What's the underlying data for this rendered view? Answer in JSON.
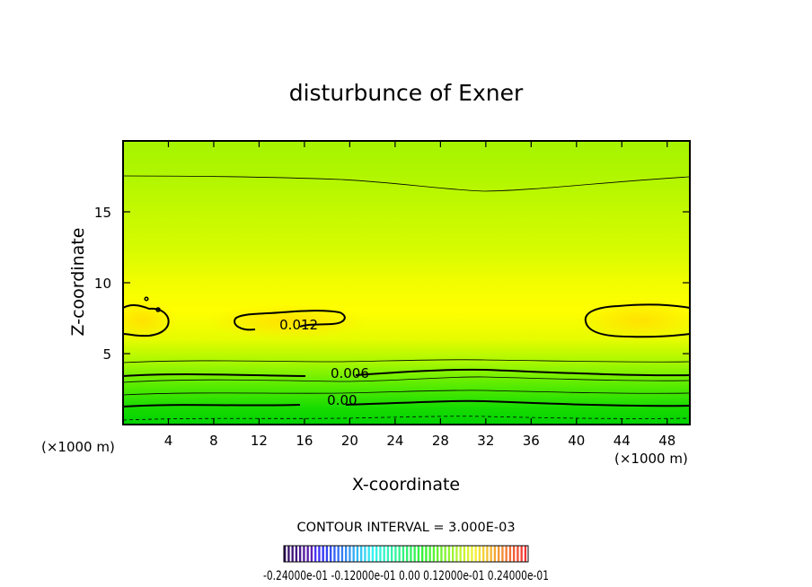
{
  "chart_data": {
    "type": "heatmap",
    "title": "disturbunce of Exner",
    "xlabel": "X-coordinate",
    "ylabel": "Z-coordinate",
    "x_unit": "(×1000 m)",
    "y_unit": "(×1000 m)",
    "xlim": [
      0,
      50
    ],
    "ylim": [
      0,
      20
    ],
    "x_ticks": [
      4,
      8,
      12,
      16,
      20,
      24,
      28,
      32,
      36,
      40,
      44,
      48
    ],
    "y_ticks": [
      5,
      10,
      15
    ],
    "contour_interval_text": "CONTOUR INTERVAL = 3.000E-03",
    "contour_labels": [
      {
        "text": "0.012",
        "x": 13.8,
        "z": 6.7
      },
      {
        "text": "0.006",
        "x": 18.3,
        "z": 3.3
      },
      {
        "text": "0.00",
        "x": 18.0,
        "z": 1.4
      }
    ],
    "colorbar_labels_text": "-0.24000e-01   -0.12000e-01   0.00   0.12000e-01   0.24000e-01",
    "colorbar_range": [
      -0.024,
      0.024
    ],
    "grid": false
  }
}
